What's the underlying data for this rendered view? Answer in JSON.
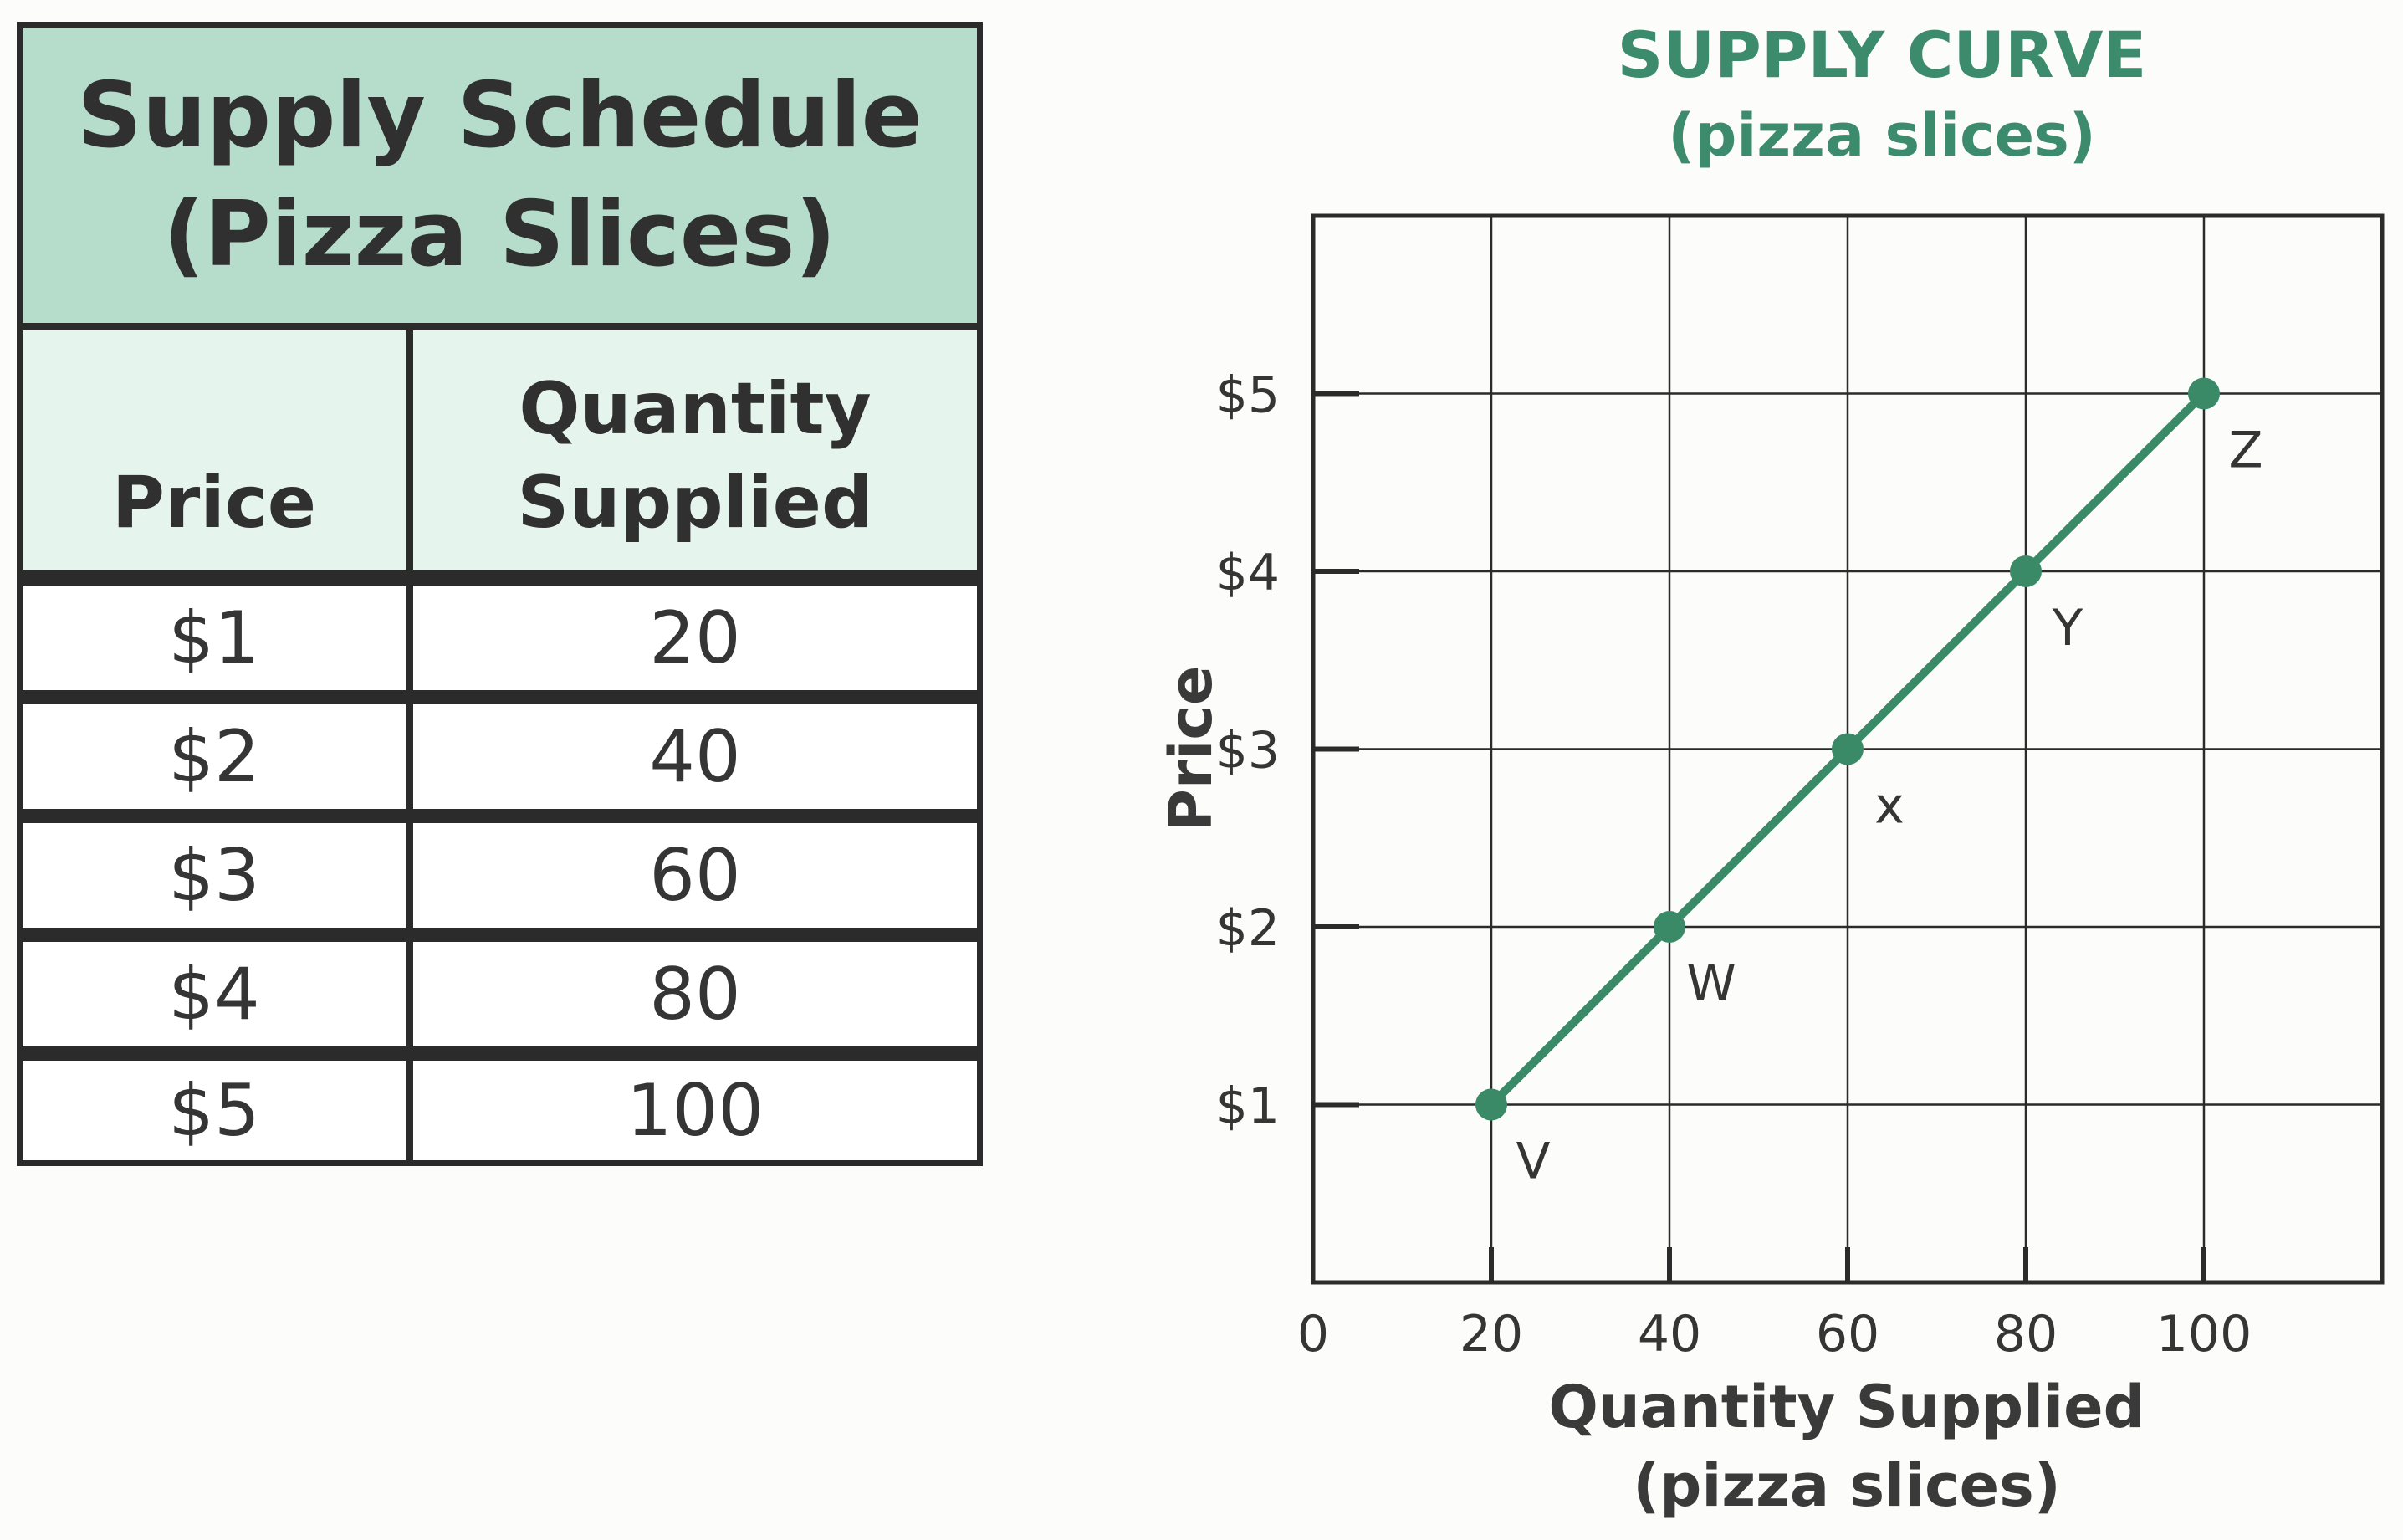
{
  "table": {
    "title_line1": "Supply Schedule",
    "title_line2": "(Pizza Slices)",
    "col_price": "Price",
    "col_quantity_line1": "Quantity",
    "col_quantity_line2": "Supplied",
    "rows": [
      {
        "price": "$1",
        "quantity": "20"
      },
      {
        "price": "$2",
        "quantity": "40"
      },
      {
        "price": "$3",
        "quantity": "60"
      },
      {
        "price": "$4",
        "quantity": "80"
      },
      {
        "price": "$5",
        "quantity": "100"
      }
    ]
  },
  "colors": {
    "accent": "#3d8b6d",
    "line": "#3a8a68",
    "header_bg": "#b6dccb",
    "subheader_bg": "#e6f4ee",
    "grid": "#2b2b2b"
  },
  "chart_data": {
    "type": "line",
    "title": "SUPPLY CURVE",
    "subtitle": "(pizza slices)",
    "xlabel": "Quantity Supplied",
    "xlabel_sub": "(pizza slices)",
    "ylabel": "Price",
    "x_ticks": [
      "0",
      "20",
      "40",
      "60",
      "80",
      "100"
    ],
    "y_ticks": [
      "$1",
      "$2",
      "$3",
      "$4",
      "$5"
    ],
    "xlim": [
      0,
      120
    ],
    "ylim": [
      0,
      6
    ],
    "grid": true,
    "series": [
      {
        "points": [
          {
            "x": 20,
            "y": 1,
            "label": "V"
          },
          {
            "x": 40,
            "y": 2,
            "label": "W"
          },
          {
            "x": 60,
            "y": 3,
            "label": "x"
          },
          {
            "x": 80,
            "y": 4,
            "label": "Y"
          },
          {
            "x": 100,
            "y": 5,
            "label": "Z"
          }
        ]
      }
    ]
  }
}
